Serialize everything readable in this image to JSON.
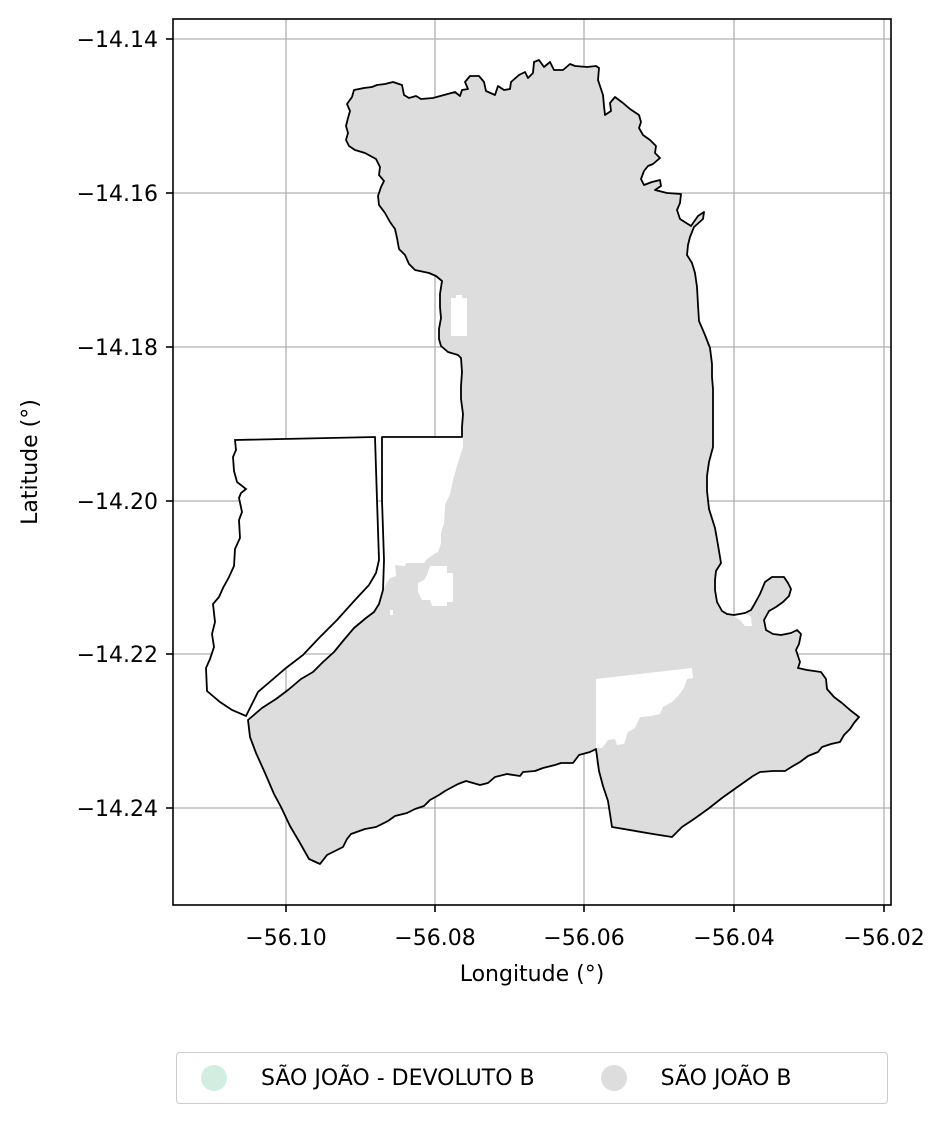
{
  "map": {
    "xlabel": "Longitude (°)",
    "ylabel": "Latitude (°)",
    "x_ticks": [
      "−56.10",
      "−56.08",
      "−56.06",
      "−56.04",
      "−56.02"
    ],
    "y_ticks": [
      "−14.14",
      "−14.16",
      "−14.18",
      "−14.20",
      "−14.22",
      "−14.24"
    ],
    "x_range": [
      -56.1152,
      -56.0187
    ],
    "y_range": [
      -14.2529,
      -14.1374
    ],
    "grid": true,
    "colors": {
      "sao_joao_b_fill": "#dddddd",
      "devoluto_fill": "#d3eee0",
      "boundary": "#000000",
      "grid": "#b0b0b0"
    }
  },
  "legend": {
    "placement": "bottom-center",
    "items": [
      {
        "label": "SÃO JOÃO - DEVOLUTO B",
        "color": "#d3eee0"
      },
      {
        "label": "SÃO JOÃO B",
        "color": "#dddddd"
      }
    ]
  }
}
